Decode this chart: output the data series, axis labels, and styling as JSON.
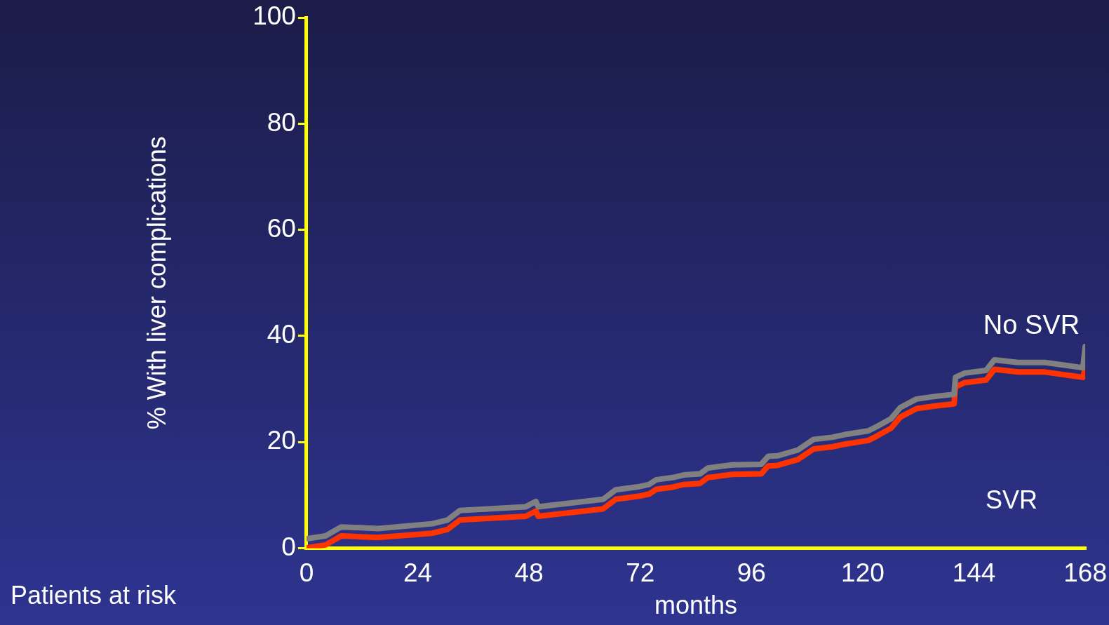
{
  "chart_data": {
    "type": "line",
    "xlabel": "months",
    "ylabel": "% With liver complications",
    "xlim": [
      0,
      168
    ],
    "xticks": [
      0,
      24,
      48,
      72,
      96,
      120,
      144,
      168
    ],
    "ylim": [
      0,
      100
    ],
    "yticks": [
      0,
      20,
      40,
      60,
      80,
      100
    ],
    "grid": false,
    "legend": false,
    "marker": "none",
    "line_style": "solid",
    "series": [
      {
        "color": "#808080",
        "x": [
          0.3,
          4.1,
          7.5,
          15.4,
          27.1,
          30.4,
          33.1,
          47.3,
          49.5,
          50.0,
          64.0,
          66.7,
          71.8,
          73.9,
          75.5,
          79.0,
          81.4,
          84.9,
          86.6,
          91.8,
          98.1,
          99.6,
          101.6,
          106.0,
          109.4,
          113.4,
          116.1,
          121.2,
          123.0,
          126.1,
          128.1,
          131.6,
          135.6,
          139.7,
          140.0,
          142.0,
          146.6,
          148.4,
          153.5,
          159.3,
          167.5,
          168
        ],
        "values": [
          1.8,
          2.3,
          4.0,
          3.7,
          4.6,
          5.3,
          7.1,
          7.8,
          8.8,
          7.8,
          9.2,
          11.0,
          11.6,
          12.0,
          12.9,
          13.3,
          13.8,
          14.0,
          15.1,
          15.7,
          15.8,
          17.3,
          17.4,
          18.5,
          20.5,
          20.9,
          21.4,
          22.1,
          22.9,
          24.4,
          26.5,
          28.1,
          28.6,
          29.0,
          32.2,
          33.0,
          33.5,
          35.5,
          35.0,
          35.0,
          34.0,
          38.0
        ]
      },
      {
        "name": "No SVR",
        "color": "#ff3300",
        "x": [
          0.3,
          4.1,
          7.5,
          15.4,
          27.1,
          30.4,
          33.1,
          47.3,
          49.5,
          50.0,
          64.0,
          66.7,
          71.8,
          73.9,
          75.5,
          79.0,
          81.4,
          84.9,
          86.6,
          91.8,
          98.1,
          99.6,
          101.6,
          106.0,
          109.4,
          113.4,
          116.1,
          121.2,
          123.0,
          126.1,
          128.1,
          131.6,
          135.6,
          139.7,
          140.0,
          142.0,
          146.6,
          148.4,
          153.5,
          159.3,
          167.5,
          168
        ],
        "values": [
          0.1,
          0.6,
          2.3,
          2.0,
          2.8,
          3.5,
          5.3,
          6.0,
          7.0,
          6.0,
          7.4,
          9.2,
          9.8,
          10.2,
          11.1,
          11.5,
          12.0,
          12.2,
          13.3,
          13.9,
          14.0,
          15.5,
          15.6,
          16.7,
          18.7,
          19.1,
          19.6,
          20.3,
          21.1,
          22.6,
          24.7,
          26.3,
          26.8,
          27.2,
          30.4,
          31.2,
          31.7,
          33.7,
          33.2,
          33.2,
          32.2,
          34.0
        ]
      }
    ],
    "annotations": [
      "SVR",
      "Patients at risk"
    ]
  }
}
